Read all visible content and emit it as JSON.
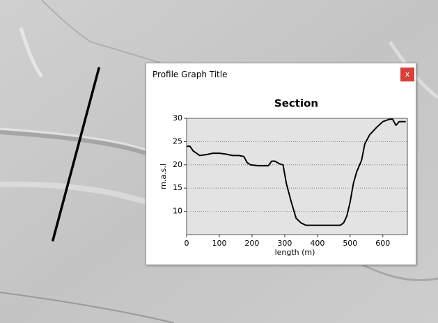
{
  "window": {
    "title": "Profile Graph Title",
    "close": "x"
  },
  "chart_data": {
    "type": "line",
    "title": "Section",
    "x_label": "length (m)",
    "y_label": "m.a.s.l",
    "x": [
      0,
      10,
      20,
      30,
      40,
      60,
      80,
      100,
      120,
      140,
      160,
      175,
      185,
      195,
      220,
      250,
      260,
      270,
      285,
      295,
      305,
      320,
      335,
      350,
      365,
      400,
      440,
      470,
      480,
      490,
      500,
      510,
      520,
      535,
      545,
      560,
      580,
      600,
      620,
      630,
      640,
      650,
      670
    ],
    "values": [
      24,
      24,
      23,
      22.5,
      22,
      22.2,
      22.5,
      22.5,
      22.3,
      22,
      22,
      21.8,
      20.5,
      20,
      19.8,
      19.8,
      20.8,
      20.8,
      20.2,
      20,
      16,
      12,
      8.5,
      7.5,
      7,
      7,
      7,
      7,
      7.5,
      9,
      12,
      16,
      18.5,
      21,
      24.5,
      26.5,
      28,
      29.3,
      29.8,
      29.8,
      28.5,
      29.3,
      29.3
    ],
    "color": "#000000",
    "xlim": [
      0,
      675
    ],
    "xticks": [
      0,
      100,
      200,
      300,
      400,
      500,
      600
    ],
    "ylim": [
      5,
      30
    ],
    "yticks": [
      10,
      15,
      20,
      25,
      30
    ],
    "grid": true
  }
}
